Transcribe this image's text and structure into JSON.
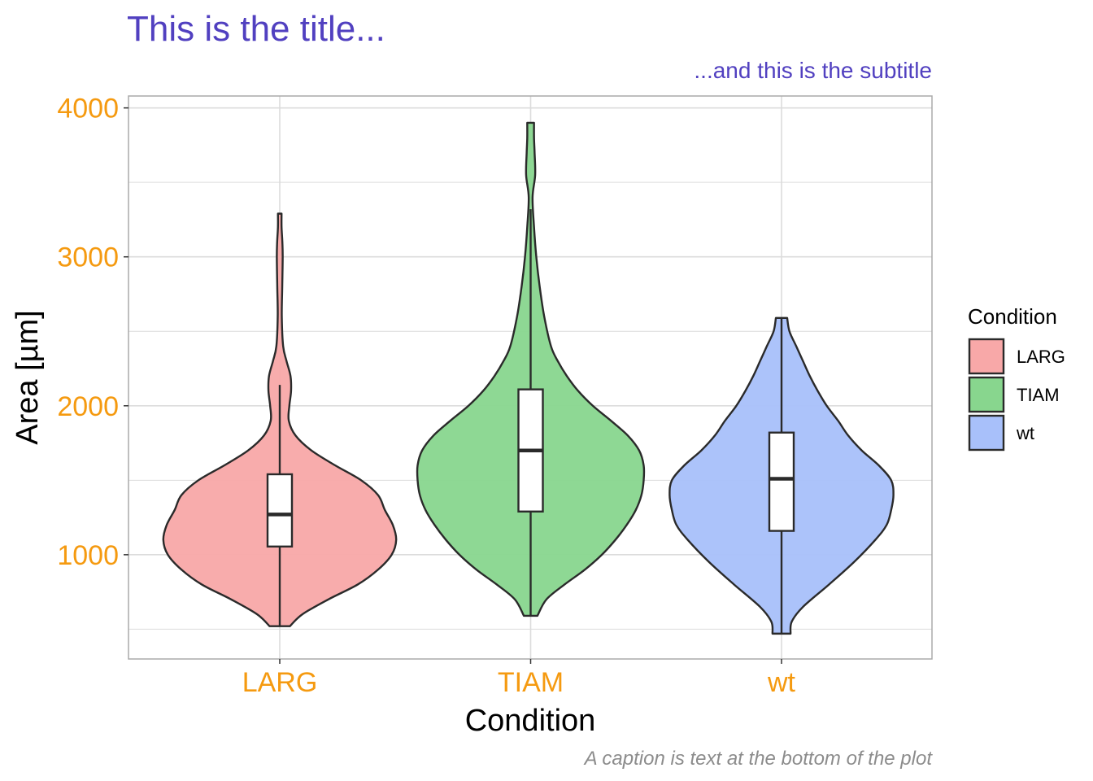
{
  "colors": {
    "title": "#5140C0",
    "tick": "#F59A10",
    "caption": "#8C8C8C",
    "axis_title": "#000000",
    "grid": "#DCDCDC",
    "panel_border": "#AAAAAA",
    "outline": "#2A2A2A"
  },
  "chart_data": {
    "type": "violin",
    "title": "This is the title...",
    "subtitle": "...and this is the subtitle",
    "caption": "A caption is text at the bottom of the plot",
    "xlabel": "Condition",
    "ylabel": "Area [µm]",
    "ylim": [
      300,
      4080
    ],
    "yticks": [
      1000,
      2000,
      3000,
      4000
    ],
    "categories": [
      "LARG",
      "TIAM",
      "wt"
    ],
    "legend": {
      "title": "Condition",
      "position": "right",
      "items": [
        {
          "label": "LARG",
          "color": "#F8A8A8"
        },
        {
          "label": "TIAM",
          "color": "#88D68E"
        },
        {
          "label": "wt",
          "color": "#A8C0FA"
        }
      ]
    },
    "series": [
      {
        "category": "LARG",
        "fill": "#F8A8A8",
        "min": 520,
        "q1": 1055,
        "median": 1270,
        "q3": 1540,
        "max": 2140,
        "vmax": 3290,
        "density": [
          [
            520,
            0.09
          ],
          [
            600,
            0.2
          ],
          [
            700,
            0.43
          ],
          [
            800,
            0.69
          ],
          [
            900,
            0.87
          ],
          [
            1000,
            0.99
          ],
          [
            1100,
            1.03
          ],
          [
            1200,
            1.0
          ],
          [
            1300,
            0.93
          ],
          [
            1400,
            0.87
          ],
          [
            1500,
            0.72
          ],
          [
            1600,
            0.49
          ],
          [
            1700,
            0.28
          ],
          [
            1800,
            0.14
          ],
          [
            1900,
            0.08
          ],
          [
            2000,
            0.085
          ],
          [
            2100,
            0.1
          ],
          [
            2200,
            0.095
          ],
          [
            2300,
            0.06
          ],
          [
            2400,
            0.03
          ],
          [
            2600,
            0.018
          ],
          [
            2800,
            0.022
          ],
          [
            3000,
            0.026
          ],
          [
            3100,
            0.023
          ],
          [
            3200,
            0.016
          ],
          [
            3290,
            0.016
          ]
        ]
      },
      {
        "category": "TIAM",
        "fill": "#88D68E",
        "min": 590,
        "q1": 1290,
        "median": 1700,
        "q3": 2110,
        "max": 3320,
        "vmax": 3900,
        "density": [
          [
            590,
            0.06
          ],
          [
            700,
            0.14
          ],
          [
            800,
            0.3
          ],
          [
            900,
            0.48
          ],
          [
            1000,
            0.63
          ],
          [
            1100,
            0.75
          ],
          [
            1200,
            0.85
          ],
          [
            1300,
            0.93
          ],
          [
            1400,
            0.98
          ],
          [
            1500,
            1.0
          ],
          [
            1600,
            1.0
          ],
          [
            1700,
            0.96
          ],
          [
            1800,
            0.86
          ],
          [
            1900,
            0.71
          ],
          [
            2000,
            0.55
          ],
          [
            2100,
            0.42
          ],
          [
            2200,
            0.32
          ],
          [
            2300,
            0.24
          ],
          [
            2400,
            0.18
          ],
          [
            2600,
            0.12
          ],
          [
            2800,
            0.08
          ],
          [
            3000,
            0.05
          ],
          [
            3200,
            0.03
          ],
          [
            3400,
            0.017
          ],
          [
            3550,
            0.04
          ],
          [
            3700,
            0.035
          ],
          [
            3800,
            0.03
          ],
          [
            3900,
            0.03
          ]
        ]
      },
      {
        "category": "wt",
        "fill": "#A8C0FA",
        "min": 470,
        "q1": 1160,
        "median": 1510,
        "q3": 1820,
        "max": 2590,
        "vmax": 2590,
        "density": [
          [
            470,
            0.08
          ],
          [
            550,
            0.09
          ],
          [
            650,
            0.19
          ],
          [
            800,
            0.42
          ],
          [
            950,
            0.64
          ],
          [
            1100,
            0.83
          ],
          [
            1200,
            0.93
          ],
          [
            1300,
            0.97
          ],
          [
            1400,
            0.99
          ],
          [
            1500,
            0.97
          ],
          [
            1600,
            0.86
          ],
          [
            1700,
            0.71
          ],
          [
            1800,
            0.59
          ],
          [
            1900,
            0.5
          ],
          [
            2000,
            0.4
          ],
          [
            2100,
            0.32
          ],
          [
            2200,
            0.25
          ],
          [
            2300,
            0.19
          ],
          [
            2400,
            0.13
          ],
          [
            2500,
            0.07
          ],
          [
            2590,
            0.05
          ]
        ]
      }
    ]
  }
}
